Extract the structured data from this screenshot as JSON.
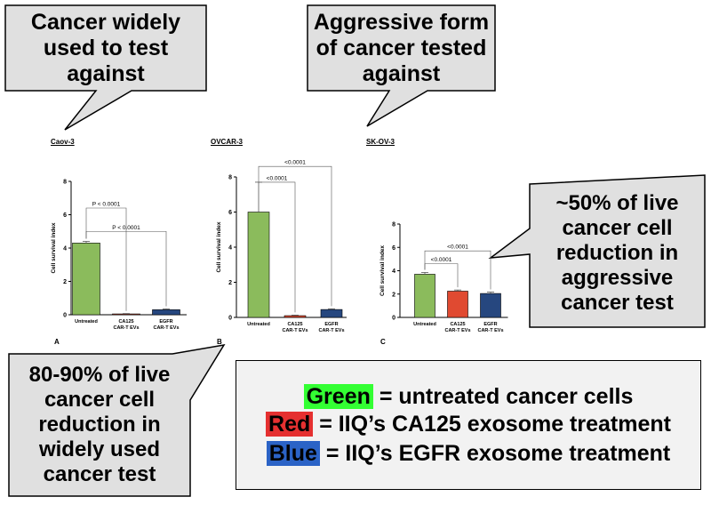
{
  "callouts": {
    "widely_used": [
      "Cancer widely",
      "used to test",
      "against"
    ],
    "aggressive": [
      "Aggressive form",
      "of cancer tested",
      "against"
    ],
    "fifty_percent": [
      "~50% of live",
      "cancer cell",
      "reduction in",
      "aggressive",
      "cancer test"
    ],
    "eighty_ninety": [
      "80-90% of live",
      "cancer cell",
      "reduction in",
      "widely used",
      "cancer test"
    ]
  },
  "legend": {
    "green_word": "Green",
    "green_text": " = untreated cancer cells",
    "red_word": "Red",
    "red_text": " = IIQ’s CA125 exosome treatment",
    "blue_word": "Blue",
    "blue_text": " = IIQ’s EGFR exosome treatment"
  },
  "colors": {
    "untreated": "#8bbb5c",
    "ca125": "#e04a31",
    "egfr": "#26477f",
    "legend_green_bg": "#33ff33",
    "legend_red_bg": "#e53030",
    "legend_blue_bg": "#2b63c6"
  },
  "chart_data": [
    {
      "type": "bar",
      "title": "Caov-3",
      "panel_label": "A",
      "ylabel": "Cell survival index",
      "ylim": [
        0,
        8
      ],
      "yticks": [
        0,
        2,
        4,
        6,
        8
      ],
      "categories": [
        "Untreated",
        "CA125 CAR-T EVs",
        "EGFR CAR-T EVs"
      ],
      "category_lines": [
        [
          "Untreated"
        ],
        [
          "CA125",
          "CAR-T EVs"
        ],
        [
          "EGFR",
          "CAR-T EVs"
        ]
      ],
      "values": [
        4.3,
        0.05,
        0.3
      ],
      "errors": [
        0.1,
        0.02,
        0.05
      ],
      "annotations": [
        {
          "from": 0,
          "to": 1,
          "level": 6.4,
          "text": "P < 0.0001"
        },
        {
          "from": 0,
          "to": 2,
          "level": 5.0,
          "text": "P < 0.0001"
        }
      ]
    },
    {
      "type": "bar",
      "title": "OVCAR-3",
      "panel_label": "B",
      "ylabel": "Cell survival index",
      "ylim": [
        0,
        8
      ],
      "yticks": [
        0,
        2,
        4,
        6,
        8
      ],
      "categories": [
        "Untreated",
        "CA125 CAR-T EVs",
        "EGFR CAR-T EVs"
      ],
      "category_lines": [
        [
          "Untreated"
        ],
        [
          "CA125",
          "CAR-T EVs"
        ],
        [
          "EGFR",
          "CAR-T EVs"
        ]
      ],
      "values": [
        6.0,
        0.1,
        0.45
      ],
      "errors": [
        1.7,
        0.03,
        0.04
      ],
      "annotations": [
        {
          "from": 0,
          "to": 1,
          "level": 7.7,
          "text": "<0.0001"
        },
        {
          "from": 0,
          "to": 2,
          "level": 8.6,
          "text": "<0.0001"
        }
      ]
    },
    {
      "type": "bar",
      "title": "SK-OV-3",
      "panel_label": "C",
      "ylabel": "Cell survival index",
      "ylim": [
        0,
        8
      ],
      "yticks": [
        0,
        2,
        4,
        6,
        8
      ],
      "categories": [
        "Untreated",
        "CA125 CAR-T EVs",
        "EGFR CAR-T EVs"
      ],
      "category_lines": [
        [
          "Untreated"
        ],
        [
          "CA125",
          "CAR-T EVs"
        ],
        [
          "EGFR",
          "CAR-T EVs"
        ]
      ],
      "values": [
        3.7,
        2.25,
        2.05
      ],
      "errors": [
        0.15,
        0.1,
        0.12
      ],
      "annotations": [
        {
          "from": 0,
          "to": 1,
          "level": 4.6,
          "text": "<0.0001"
        },
        {
          "from": 0,
          "to": 2,
          "level": 5.7,
          "text": "<0.0001"
        }
      ]
    }
  ]
}
